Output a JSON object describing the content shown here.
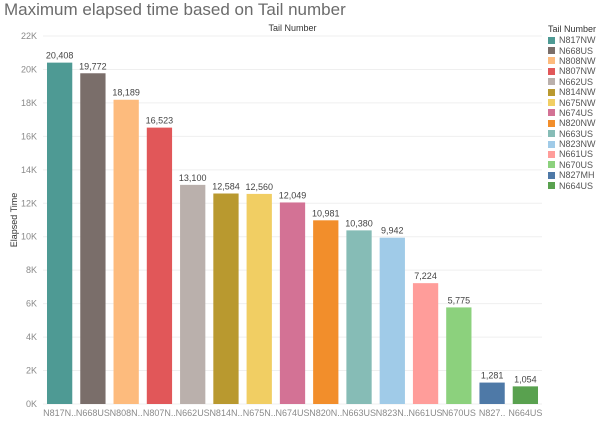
{
  "title": "Maximum elapsed time based on Tail number",
  "legend": {
    "title": "Tail Number",
    "items": [
      {
        "label": "N817NW",
        "color": "#4e9a94"
      },
      {
        "label": "N668US",
        "color": "#7a6e6a"
      },
      {
        "label": "N808NW",
        "color": "#fdbb7d"
      },
      {
        "label": "N807NW",
        "color": "#e15759"
      },
      {
        "label": "N662US",
        "color": "#bab0ac"
      },
      {
        "label": "N814NW",
        "color": "#b9992f"
      },
      {
        "label": "N675NW",
        "color": "#f1ce63"
      },
      {
        "label": "N674US",
        "color": "#d37295"
      },
      {
        "label": "N820NW",
        "color": "#f28e2b"
      },
      {
        "label": "N663US",
        "color": "#86bcb6"
      },
      {
        "label": "N823NW",
        "color": "#a0cbe8"
      },
      {
        "label": "N661US",
        "color": "#ff9d9a"
      },
      {
        "label": "N670US",
        "color": "#8cd17d"
      },
      {
        "label": "N827MH",
        "color": "#4e79a7"
      },
      {
        "label": "N664US",
        "color": "#59a14f"
      }
    ]
  },
  "chart_data": {
    "type": "bar",
    "title": "Maximum elapsed time based on Tail number",
    "header": "Tail Number",
    "xlabel": "",
    "ylabel": "Elapsed Time",
    "ylim": [
      0,
      22000
    ],
    "yticks": [
      0,
      2000,
      4000,
      6000,
      8000,
      10000,
      12000,
      14000,
      16000,
      18000,
      20000,
      22000
    ],
    "ytick_labels": [
      "0K",
      "2K",
      "4K",
      "6K",
      "8K",
      "10K",
      "12K",
      "14K",
      "16K",
      "18K",
      "20K",
      "22K"
    ],
    "grid": true,
    "legend_position": "right",
    "categories": [
      "N817NW",
      "N668US",
      "N808NW",
      "N807NW",
      "N662US",
      "N814NW",
      "N675NW",
      "N674US",
      "N820NW",
      "N663US",
      "N823NW",
      "N661US",
      "N670US",
      "N827MH",
      "N664US"
    ],
    "category_tick_labels": [
      "N817N..",
      "N668US",
      "N808N..",
      "N807N..",
      "N662US",
      "N814N..",
      "N675N..",
      "N674US",
      "N820N..",
      "N663US",
      "N823N..",
      "N661US",
      "N670US",
      "N827..",
      "N664US"
    ],
    "values": [
      20408,
      19772,
      18189,
      16523,
      13100,
      12584,
      12560,
      12049,
      10981,
      10380,
      9942,
      7224,
      5775,
      1281,
      1054
    ],
    "value_labels": [
      "20,408",
      "19,772",
      "18,189",
      "16,523",
      "13,100",
      "12,584",
      "12,560",
      "12,049",
      "10,981",
      "10,380",
      "9,942",
      "7,224",
      "5,775",
      "1,281",
      "1,054"
    ],
    "colors": [
      "#4e9a94",
      "#7a6e6a",
      "#fdbb7d",
      "#e15759",
      "#bab0ac",
      "#b9992f",
      "#f1ce63",
      "#d37295",
      "#f28e2b",
      "#86bcb6",
      "#a0cbe8",
      "#ff9d9a",
      "#8cd17d",
      "#4e79a7",
      "#59a14f"
    ]
  }
}
